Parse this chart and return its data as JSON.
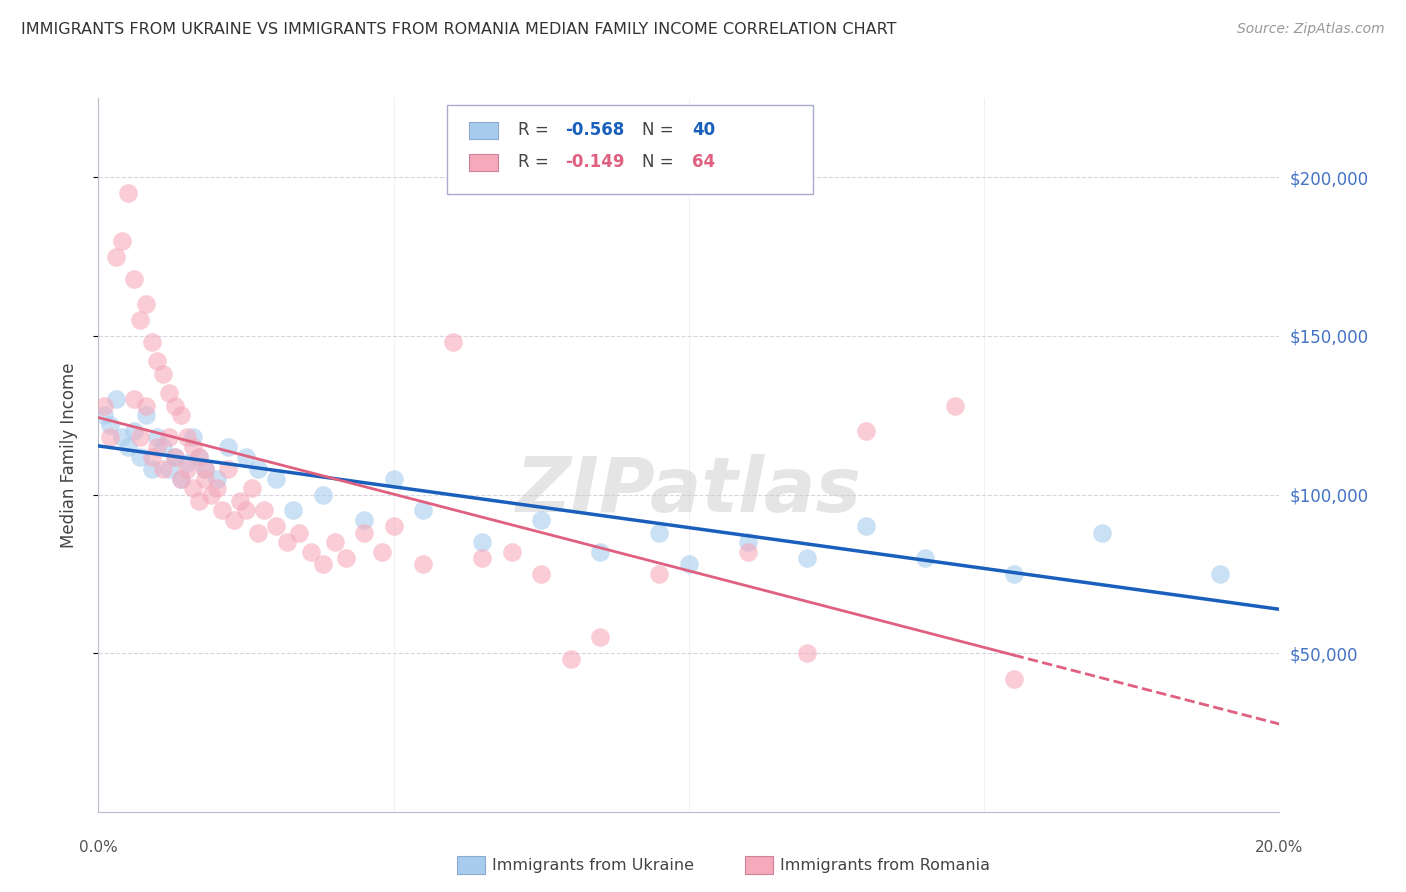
{
  "title": "IMMIGRANTS FROM UKRAINE VS IMMIGRANTS FROM ROMANIA MEDIAN FAMILY INCOME CORRELATION CHART",
  "source": "Source: ZipAtlas.com",
  "ylabel": "Median Family Income",
  "xlim": [
    0.0,
    0.2
  ],
  "ylim": [
    0,
    225000
  ],
  "yticks": [
    50000,
    100000,
    150000,
    200000
  ],
  "ytick_labels": [
    "$50,000",
    "$100,000",
    "$150,000",
    "$200,000"
  ],
  "ukraine_R": -0.568,
  "ukraine_N": 40,
  "romania_R": -0.149,
  "romania_N": 64,
  "ukraine_color": "#A8CCEE",
  "romania_color": "#F5AABB",
  "ukraine_line_color": "#1A5FBB",
  "romania_line_color": "#E06080",
  "background_color": "#FFFFFF",
  "grid_color": "#CCCCDD",
  "right_tick_color": "#4472C4",
  "watermark": "ZIPatlas",
  "ukraine_x": [
    0.001,
    0.002,
    0.003,
    0.004,
    0.005,
    0.006,
    0.007,
    0.008,
    0.009,
    0.01,
    0.011,
    0.012,
    0.013,
    0.014,
    0.015,
    0.016,
    0.017,
    0.018,
    0.02,
    0.022,
    0.025,
    0.027,
    0.03,
    0.033,
    0.038,
    0.045,
    0.05,
    0.055,
    0.065,
    0.075,
    0.085,
    0.095,
    0.1,
    0.11,
    0.12,
    0.13,
    0.14,
    0.155,
    0.17,
    0.19
  ],
  "ukraine_y": [
    125000,
    122000,
    130000,
    118000,
    115000,
    120000,
    112000,
    125000,
    108000,
    118000,
    115000,
    108000,
    112000,
    105000,
    110000,
    118000,
    112000,
    108000,
    105000,
    115000,
    112000,
    108000,
    105000,
    95000,
    100000,
    92000,
    105000,
    95000,
    85000,
    92000,
    82000,
    88000,
    78000,
    85000,
    80000,
    90000,
    80000,
    75000,
    88000,
    75000
  ],
  "romania_x": [
    0.001,
    0.002,
    0.003,
    0.004,
    0.005,
    0.006,
    0.006,
    0.007,
    0.007,
    0.008,
    0.008,
    0.009,
    0.009,
    0.01,
    0.01,
    0.011,
    0.011,
    0.012,
    0.012,
    0.013,
    0.013,
    0.014,
    0.014,
    0.015,
    0.015,
    0.016,
    0.016,
    0.017,
    0.017,
    0.018,
    0.018,
    0.019,
    0.02,
    0.021,
    0.022,
    0.023,
    0.024,
    0.025,
    0.026,
    0.027,
    0.028,
    0.03,
    0.032,
    0.034,
    0.036,
    0.038,
    0.04,
    0.042,
    0.045,
    0.048,
    0.05,
    0.055,
    0.06,
    0.065,
    0.07,
    0.075,
    0.08,
    0.085,
    0.095,
    0.11,
    0.12,
    0.13,
    0.145,
    0.155
  ],
  "romania_y": [
    128000,
    118000,
    175000,
    180000,
    195000,
    130000,
    168000,
    118000,
    155000,
    128000,
    160000,
    112000,
    148000,
    115000,
    142000,
    108000,
    138000,
    118000,
    132000,
    112000,
    128000,
    105000,
    125000,
    108000,
    118000,
    102000,
    115000,
    98000,
    112000,
    105000,
    108000,
    100000,
    102000,
    95000,
    108000,
    92000,
    98000,
    95000,
    102000,
    88000,
    95000,
    90000,
    85000,
    88000,
    82000,
    78000,
    85000,
    80000,
    88000,
    82000,
    90000,
    78000,
    148000,
    80000,
    82000,
    75000,
    48000,
    55000,
    75000,
    82000,
    50000,
    120000,
    128000,
    42000
  ]
}
